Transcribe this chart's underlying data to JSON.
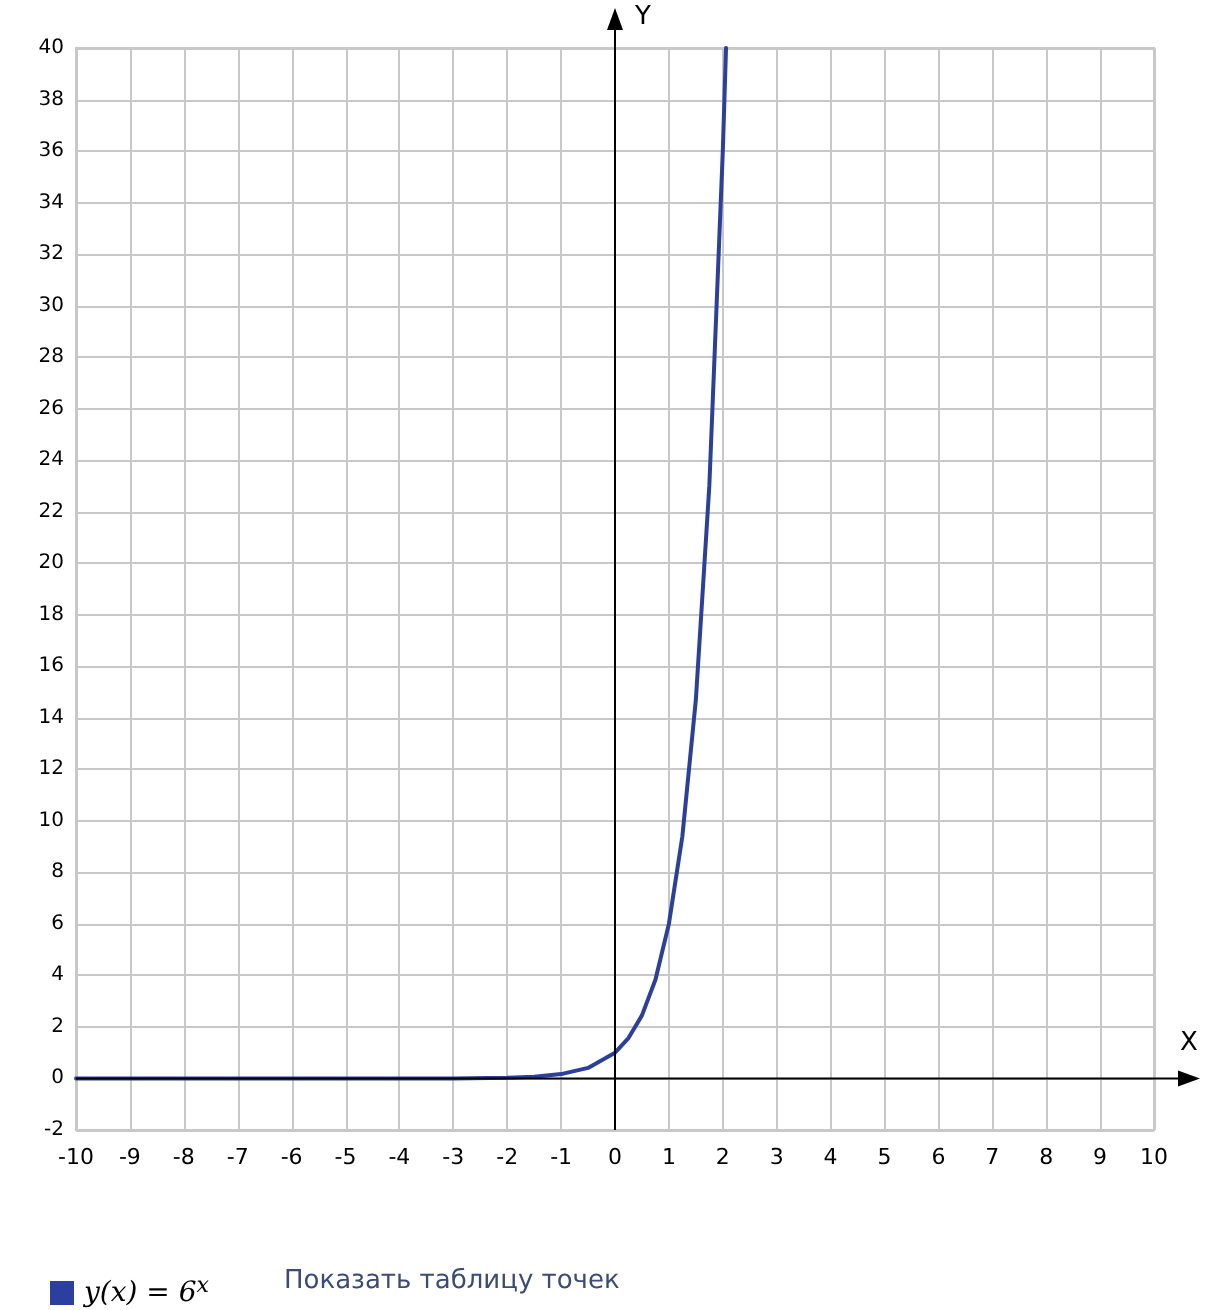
{
  "chart_data": {
    "type": "line",
    "xlabel": "X",
    "ylabel": "Y",
    "annotations": [
      "Показать таблицу точек"
    ],
    "xlim": [
      -10,
      10
    ],
    "xticks": [
      -10,
      -9,
      -8,
      -7,
      -6,
      -5,
      -4,
      -3,
      -2,
      -1,
      0,
      1,
      2,
      3,
      4,
      5,
      6,
      7,
      8,
      9,
      10
    ],
    "ylim": [
      -2,
      40
    ],
    "yticks": [
      -2,
      0,
      2,
      4,
      6,
      8,
      10,
      12,
      14,
      16,
      18,
      20,
      22,
      24,
      26,
      28,
      30,
      32,
      34,
      36,
      38,
      40
    ],
    "grid": true,
    "legend": "bottom left",
    "marker": "none",
    "line_style": "solid",
    "series": [
      {
        "name": "y(x) = 6$^{x}$",
        "color": "#2b3f9e",
        "x": [
          -10,
          -8,
          -6,
          -4,
          -3,
          -2,
          -1.5,
          -1,
          -0.5,
          0,
          0.25,
          0.5,
          0.75,
          1,
          1.25,
          1.5,
          1.75,
          2,
          2.06
        ],
        "values": [
          0,
          0,
          0,
          0,
          0,
          0.03,
          0.07,
          0.17,
          0.41,
          1,
          1.57,
          2.45,
          3.83,
          6,
          9.4,
          14.7,
          23,
          36,
          40
        ]
      }
    ]
  }
}
